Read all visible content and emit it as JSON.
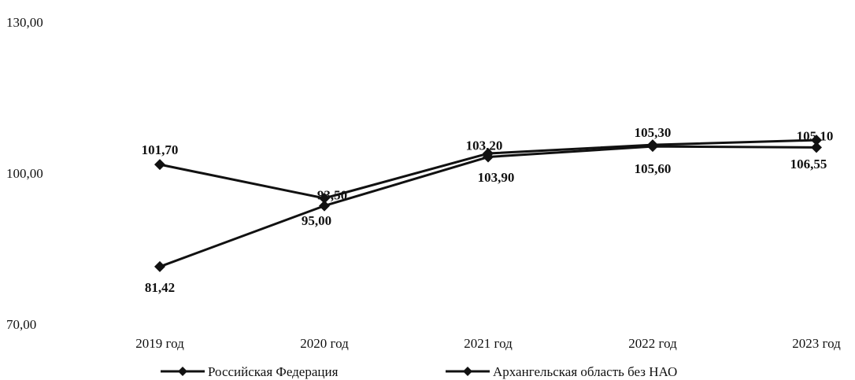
{
  "chart_data": {
    "type": "line",
    "title": "",
    "xlabel": "",
    "ylabel": "",
    "ylim": [
      70,
      130
    ],
    "yticks": [
      "70,00",
      "100,00",
      "130,00"
    ],
    "grid": false,
    "legend_placement": "bottom",
    "categories": [
      "2019 год",
      "2020 год",
      "2021 год",
      "2022 год",
      "2023 год"
    ],
    "series": [
      {
        "name": "Российская Федерация",
        "values": [
          101.7,
          95.0,
          103.9,
          105.6,
          106.55
        ],
        "labels": [
          "101,70",
          "95,00",
          "103,90",
          "105,60",
          "106,55"
        ],
        "label_positions": [
          "above",
          "below",
          "below",
          "below",
          "below"
        ],
        "color": "#111111"
      },
      {
        "name": "Архангельская область без НАО",
        "values": [
          81.42,
          93.5,
          103.2,
          105.3,
          105.1
        ],
        "labels": [
          "81,42",
          "93,50",
          "103,20",
          "105,30",
          "105,10"
        ],
        "label_positions": [
          "below",
          "above",
          "above",
          "above",
          "above"
        ],
        "color": "#111111"
      }
    ]
  }
}
